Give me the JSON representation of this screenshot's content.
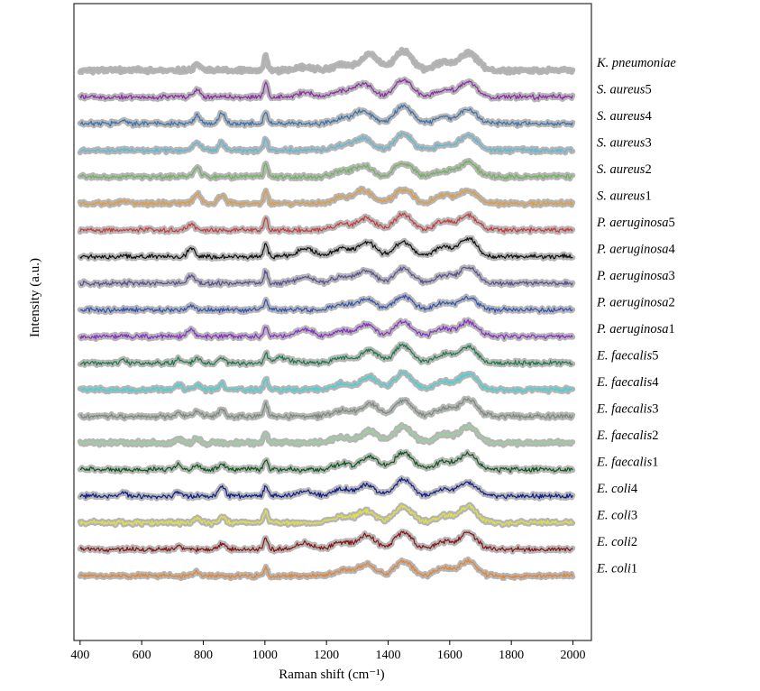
{
  "chart_data": {
    "type": "line",
    "xlabel": "Raman shift (cm⁻¹)",
    "ylabel": "Intensity (a.u.)",
    "xlim": [
      380,
      2060
    ],
    "xticks": [
      400,
      600,
      800,
      1000,
      1200,
      1400,
      1600,
      1800,
      2000
    ],
    "x_range": [
      400,
      2000
    ],
    "shaded_band": true,
    "band_color": "#b5b5b5",
    "grid": false,
    "legend": "none; labels at right end of each trace",
    "stacked_offset": true,
    "series": [
      {
        "label_italic": "K. pneumoniae",
        "label_suffix": "",
        "color": "#b0b0b0",
        "offset": 20,
        "peaks": [
          [
            780,
            0.7
          ],
          [
            1003,
            1.4
          ],
          [
            1130,
            0.3
          ],
          [
            1250,
            0.6
          ],
          [
            1340,
            1.6
          ],
          [
            1450,
            1.9
          ],
          [
            1580,
            0.8
          ],
          [
            1660,
            1.8
          ]
        ]
      },
      {
        "label_italic": "S. aureus",
        "label_suffix": "5",
        "color": "#8e2ca8",
        "offset": 19,
        "peaks": [
          [
            780,
            0.9
          ],
          [
            1003,
            1.5
          ],
          [
            1130,
            0.4
          ],
          [
            1250,
            0.6
          ],
          [
            1320,
            1.3
          ],
          [
            1450,
            1.7
          ],
          [
            1580,
            0.7
          ],
          [
            1660,
            1.5
          ]
        ]
      },
      {
        "label_italic": "S. aureus",
        "label_suffix": "4",
        "color": "#3b73ad",
        "offset": 18,
        "peaks": [
          [
            540,
            0.4
          ],
          [
            780,
            0.8
          ],
          [
            860,
            1.0
          ],
          [
            1003,
            1.2
          ],
          [
            1250,
            0.5
          ],
          [
            1320,
            1.3
          ],
          [
            1450,
            1.8
          ],
          [
            1580,
            0.6
          ],
          [
            1660,
            1.4
          ]
        ]
      },
      {
        "label_italic": "S. aureus",
        "label_suffix": "3",
        "color": "#5fb8d6",
        "offset": 17,
        "peaks": [
          [
            780,
            0.8
          ],
          [
            860,
            0.8
          ],
          [
            1003,
            1.2
          ],
          [
            1250,
            0.5
          ],
          [
            1320,
            1.2
          ],
          [
            1450,
            1.6
          ],
          [
            1580,
            0.5
          ],
          [
            1660,
            1.5
          ]
        ]
      },
      {
        "label_italic": "S. aureus",
        "label_suffix": "2",
        "color": "#6fb35c",
        "offset": 16,
        "peaks": [
          [
            780,
            0.9
          ],
          [
            1003,
            1.3
          ],
          [
            1250,
            0.5
          ],
          [
            1320,
            1.1
          ],
          [
            1450,
            1.4
          ],
          [
            1580,
            0.6
          ],
          [
            1660,
            1.5
          ]
        ]
      },
      {
        "label_italic": "S. aureus",
        "label_suffix": "1",
        "color": "#e39b3c",
        "offset": 15,
        "peaks": [
          [
            540,
            0.3
          ],
          [
            780,
            1.0
          ],
          [
            860,
            0.9
          ],
          [
            1003,
            1.2
          ],
          [
            1250,
            0.6
          ],
          [
            1320,
            1.3
          ],
          [
            1450,
            1.4
          ],
          [
            1580,
            0.8
          ],
          [
            1660,
            1.3
          ]
        ]
      },
      {
        "label_italic": "P. aeruginosa",
        "label_suffix": "5",
        "color": "#cc3b3b",
        "offset": 14,
        "peaks": [
          [
            760,
            0.6
          ],
          [
            1003,
            1.2
          ],
          [
            1250,
            0.6
          ],
          [
            1330,
            1.2
          ],
          [
            1450,
            1.6
          ],
          [
            1580,
            0.9
          ],
          [
            1660,
            1.5
          ]
        ]
      },
      {
        "label_italic": "P. aeruginosa",
        "label_suffix": "4",
        "color": "#111111",
        "offset": 13,
        "peaks": [
          [
            760,
            0.9
          ],
          [
            1003,
            1.3
          ],
          [
            1130,
            0.8
          ],
          [
            1250,
            0.8
          ],
          [
            1330,
            1.5
          ],
          [
            1450,
            1.5
          ],
          [
            1580,
            1.0
          ],
          [
            1660,
            1.8
          ]
        ]
      },
      {
        "label_italic": "P. aeruginosa",
        "label_suffix": "3",
        "color": "#5e4e94",
        "offset": 12,
        "peaks": [
          [
            760,
            0.8
          ],
          [
            1003,
            1.2
          ],
          [
            1130,
            0.6
          ],
          [
            1250,
            0.7
          ],
          [
            1330,
            1.3
          ],
          [
            1450,
            1.5
          ],
          [
            1580,
            0.8
          ],
          [
            1660,
            1.6
          ]
        ]
      },
      {
        "label_italic": "P. aeruginosa",
        "label_suffix": "2",
        "color": "#3454b4",
        "offset": 11,
        "peaks": [
          [
            760,
            0.5
          ],
          [
            1003,
            1.0
          ],
          [
            1250,
            0.6
          ],
          [
            1330,
            1.1
          ],
          [
            1450,
            1.4
          ],
          [
            1580,
            0.7
          ],
          [
            1660,
            1.3
          ]
        ]
      },
      {
        "label_italic": "P. aeruginosa",
        "label_suffix": "1",
        "color": "#8a2fc8",
        "offset": 10,
        "peaks": [
          [
            760,
            0.8
          ],
          [
            1003,
            1.1
          ],
          [
            1130,
            0.7
          ],
          [
            1250,
            0.6
          ],
          [
            1330,
            1.2
          ],
          [
            1450,
            1.5
          ],
          [
            1580,
            0.8
          ],
          [
            1660,
            1.5
          ]
        ]
      },
      {
        "label_italic": "E. faecalis",
        "label_suffix": "5",
        "color": "#1f7a4a",
        "offset": 9,
        "peaks": [
          [
            540,
            0.3
          ],
          [
            720,
            0.4
          ],
          [
            780,
            0.5
          ],
          [
            860,
            0.5
          ],
          [
            1003,
            0.9
          ],
          [
            1050,
            0.5
          ],
          [
            1250,
            0.6
          ],
          [
            1340,
            1.3
          ],
          [
            1450,
            1.8
          ],
          [
            1580,
            0.9
          ],
          [
            1660,
            1.7
          ]
        ]
      },
      {
        "label_italic": "E. faecalis",
        "label_suffix": "4",
        "color": "#3ad6d6",
        "offset": 8,
        "peaks": [
          [
            720,
            0.5
          ],
          [
            780,
            0.6
          ],
          [
            860,
            0.6
          ],
          [
            1003,
            1.0
          ],
          [
            1250,
            0.6
          ],
          [
            1340,
            1.3
          ],
          [
            1450,
            1.7
          ],
          [
            1580,
            0.8
          ],
          [
            1660,
            1.6
          ]
        ]
      },
      {
        "label_italic": "E. faecalis",
        "label_suffix": "3",
        "color": "#7a8a7a",
        "offset": 7,
        "peaks": [
          [
            720,
            0.4
          ],
          [
            780,
            0.5
          ],
          [
            860,
            0.6
          ],
          [
            1003,
            1.2
          ],
          [
            1250,
            0.6
          ],
          [
            1340,
            1.3
          ],
          [
            1450,
            1.6
          ],
          [
            1580,
            0.8
          ],
          [
            1660,
            1.7
          ]
        ]
      },
      {
        "label_italic": "E. faecalis",
        "label_suffix": "2",
        "color": "#98d49a",
        "offset": 6,
        "peaks": [
          [
            720,
            0.4
          ],
          [
            780,
            0.5
          ],
          [
            1003,
            1.1
          ],
          [
            1250,
            0.6
          ],
          [
            1340,
            1.2
          ],
          [
            1450,
            1.7
          ],
          [
            1580,
            0.8
          ],
          [
            1660,
            1.6
          ]
        ]
      },
      {
        "label_italic": "E. faecalis",
        "label_suffix": "1",
        "color": "#0f5a1a",
        "offset": 5,
        "peaks": [
          [
            720,
            0.5
          ],
          [
            780,
            0.5
          ],
          [
            860,
            0.6
          ],
          [
            1003,
            1.0
          ],
          [
            1250,
            0.6
          ],
          [
            1340,
            1.3
          ],
          [
            1450,
            1.7
          ],
          [
            1580,
            0.8
          ],
          [
            1660,
            1.6
          ]
        ]
      },
      {
        "label_italic": "E. coli",
        "label_suffix": "4",
        "color": "#111e8c",
        "offset": 4,
        "peaks": [
          [
            540,
            0.4
          ],
          [
            720,
            0.4
          ],
          [
            860,
            1.1
          ],
          [
            1003,
            1.1
          ],
          [
            1130,
            0.5
          ],
          [
            1250,
            0.7
          ],
          [
            1330,
            1.1
          ],
          [
            1450,
            1.7
          ],
          [
            1580,
            0.7
          ],
          [
            1660,
            1.4
          ]
        ]
      },
      {
        "label_italic": "E. coli",
        "label_suffix": "3",
        "color": "#e6e633",
        "offset": 3,
        "peaks": [
          [
            780,
            0.5
          ],
          [
            860,
            0.6
          ],
          [
            1003,
            1.2
          ],
          [
            1250,
            0.6
          ],
          [
            1330,
            1.2
          ],
          [
            1450,
            1.6
          ],
          [
            1580,
            0.7
          ],
          [
            1660,
            1.6
          ]
        ]
      },
      {
        "label_italic": "E. coli",
        "label_suffix": "2",
        "color": "#8a1414",
        "offset": 2,
        "peaks": [
          [
            720,
            0.4
          ],
          [
            860,
            0.6
          ],
          [
            1003,
            1.2
          ],
          [
            1130,
            0.6
          ],
          [
            1250,
            0.7
          ],
          [
            1330,
            1.4
          ],
          [
            1450,
            1.7
          ],
          [
            1580,
            0.8
          ],
          [
            1660,
            1.6
          ]
        ]
      },
      {
        "label_italic": "E. coli",
        "label_suffix": "1",
        "color": "#e8822a",
        "offset": 1,
        "peaks": [
          [
            780,
            0.4
          ],
          [
            1003,
            0.9
          ],
          [
            1250,
            0.6
          ],
          [
            1330,
            1.2
          ],
          [
            1450,
            1.5
          ],
          [
            1580,
            0.8
          ],
          [
            1660,
            1.5
          ]
        ]
      }
    ]
  }
}
